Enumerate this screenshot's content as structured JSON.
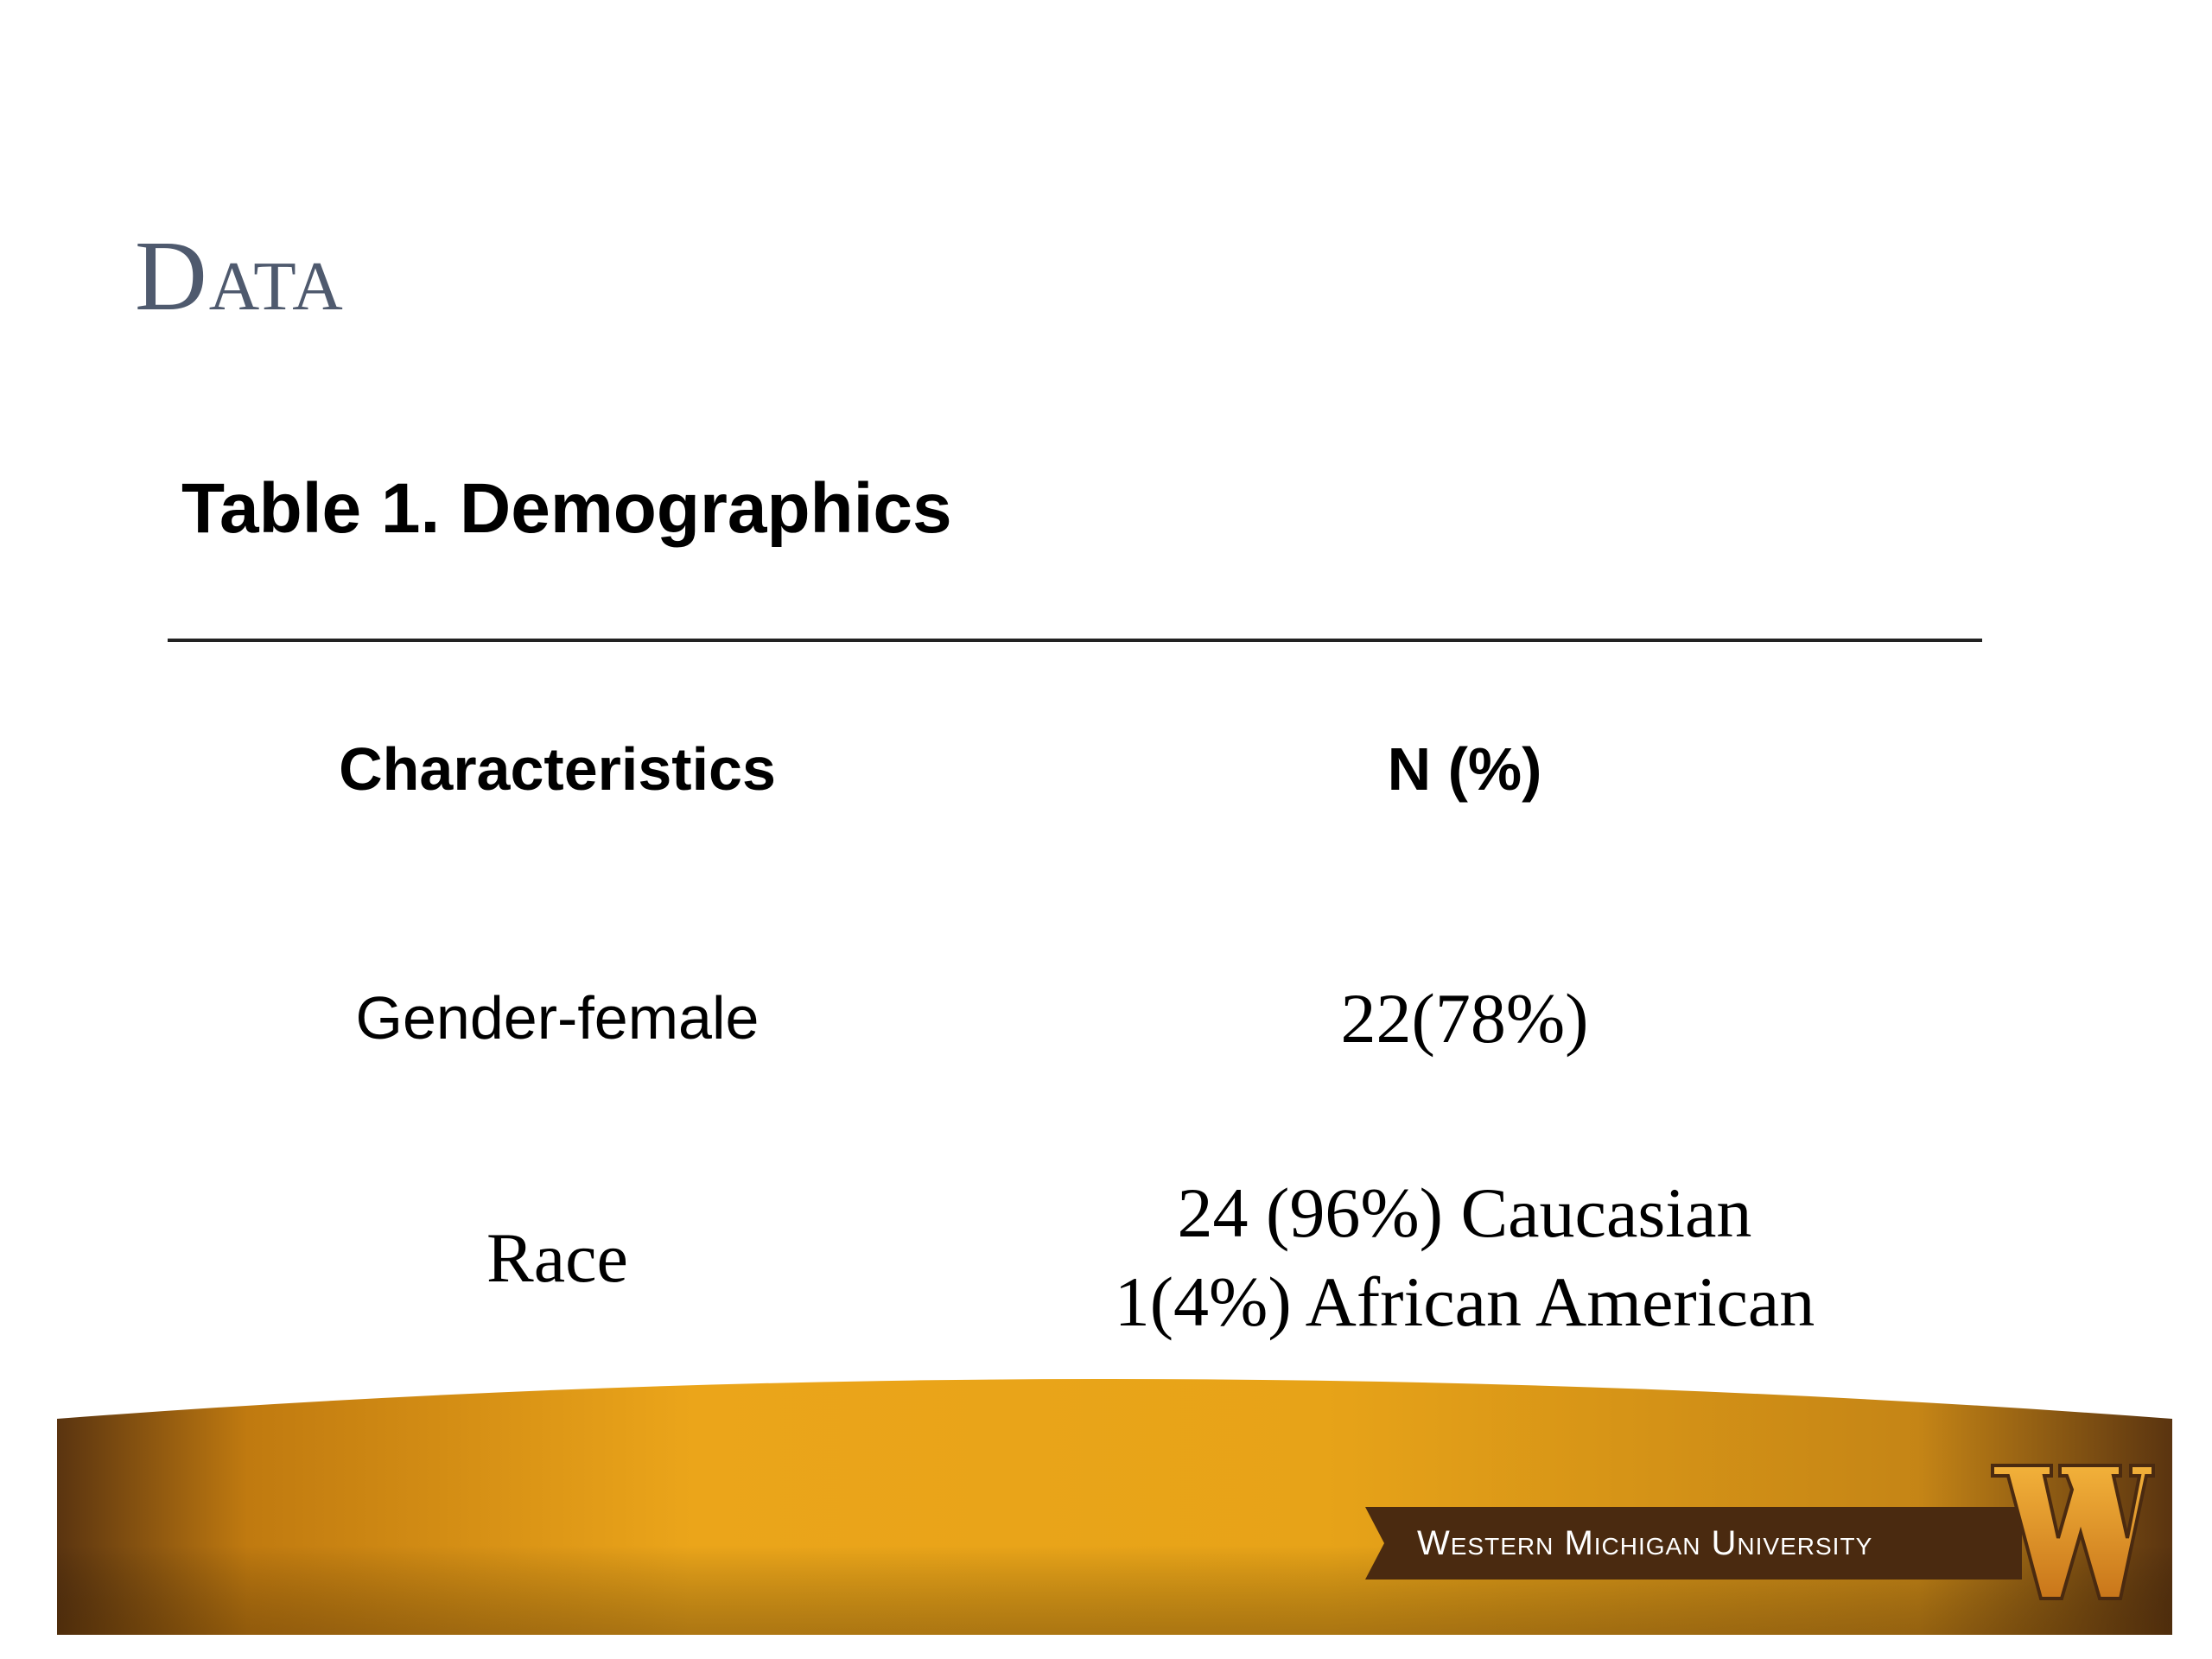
{
  "slide": {
    "title": "Data"
  },
  "table": {
    "caption": "Table 1. Demographics",
    "headers": [
      "Characteristics",
      "N (%)"
    ],
    "rows": [
      {
        "label": "Gender-female",
        "value_lines": [
          "22(78%)"
        ]
      },
      {
        "label": "Race",
        "value_lines": [
          "24 (96%) Caucasian",
          "1(4%) African American"
        ]
      }
    ]
  },
  "footer": {
    "university": "Western Michigan University",
    "logo_icon": "wmu-w-logo-icon",
    "colors": {
      "gold": "#e8a417",
      "brown": "#5a3410",
      "banner": "#4a2a10"
    }
  }
}
